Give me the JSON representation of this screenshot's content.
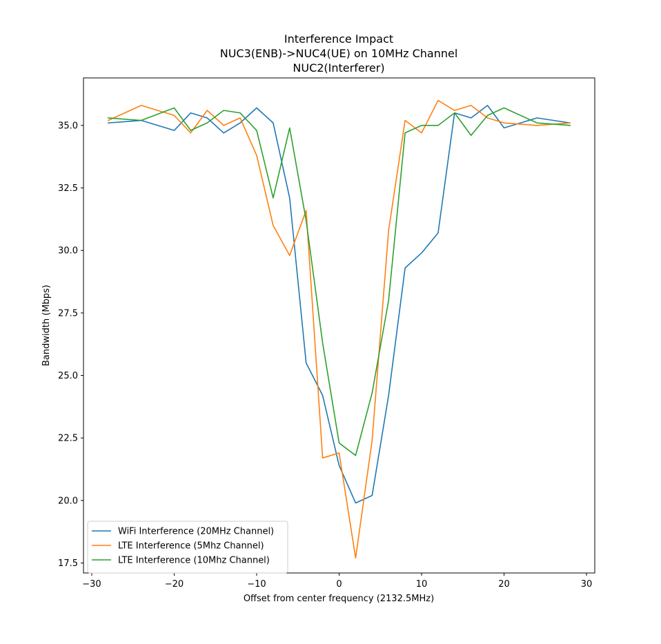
{
  "chart_data": {
    "type": "line",
    "title_lines": [
      "Interference Impact",
      "NUC3(ENB)->NUC4(UE) on 10MHz Channel",
      "NUC2(Interferer)"
    ],
    "xlabel": "Offset from center frequency (2132.5MHz)",
    "ylabel": "Bandwidth (Mbps)",
    "xlim": [
      -31,
      31
    ],
    "ylim": [
      17.1,
      36.9
    ],
    "xticks": [
      -30,
      -20,
      -10,
      0,
      10,
      20,
      30
    ],
    "xtick_labels": [
      "−30",
      "−20",
      "−10",
      "0",
      "10",
      "20",
      "30"
    ],
    "yticks": [
      17.5,
      20.0,
      22.5,
      25.0,
      27.5,
      30.0,
      32.5,
      35.0
    ],
    "ytick_labels": [
      "17.5",
      "20.0",
      "22.5",
      "25.0",
      "27.5",
      "30.0",
      "32.5",
      "35.0"
    ],
    "grid": false,
    "legend_position": "lower-left",
    "x": [
      -28,
      -24,
      -20,
      -18,
      -16,
      -14,
      -12,
      -10,
      -8,
      -6,
      -4,
      -2,
      0,
      2,
      4,
      6,
      8,
      10,
      12,
      14,
      16,
      18,
      20,
      24,
      28
    ],
    "series": [
      {
        "name": "WiFi Interference (20MHz Channel)",
        "color": "#1f77b4",
        "values": [
          35.1,
          35.2,
          34.8,
          35.5,
          35.3,
          34.7,
          35.1,
          35.7,
          35.1,
          32.1,
          25.5,
          24.2,
          21.4,
          19.9,
          20.2,
          24.2,
          29.3,
          29.9,
          30.7,
          35.5,
          35.3,
          35.8,
          34.9,
          35.3,
          35.1
        ]
      },
      {
        "name": "LTE Interference (5Mhz Channel)",
        "color": "#ff7f0e",
        "values": [
          35.2,
          35.8,
          35.4,
          34.7,
          35.6,
          35.0,
          35.3,
          33.8,
          31.0,
          29.8,
          31.6,
          21.7,
          21.9,
          17.7,
          22.4,
          30.8,
          35.2,
          34.7,
          36.0,
          35.6,
          35.8,
          35.3,
          35.1,
          35.0,
          35.1
        ]
      },
      {
        "name": "LTE Interference (10Mhz Channel)",
        "color": "#2ca02c",
        "values": [
          35.3,
          35.2,
          35.7,
          34.8,
          35.1,
          35.6,
          35.5,
          34.8,
          32.1,
          34.9,
          31.2,
          26.3,
          22.3,
          21.8,
          24.3,
          28.0,
          34.7,
          35.0,
          35.0,
          35.5,
          34.6,
          35.4,
          35.7,
          35.1,
          35.0
        ]
      }
    ]
  }
}
